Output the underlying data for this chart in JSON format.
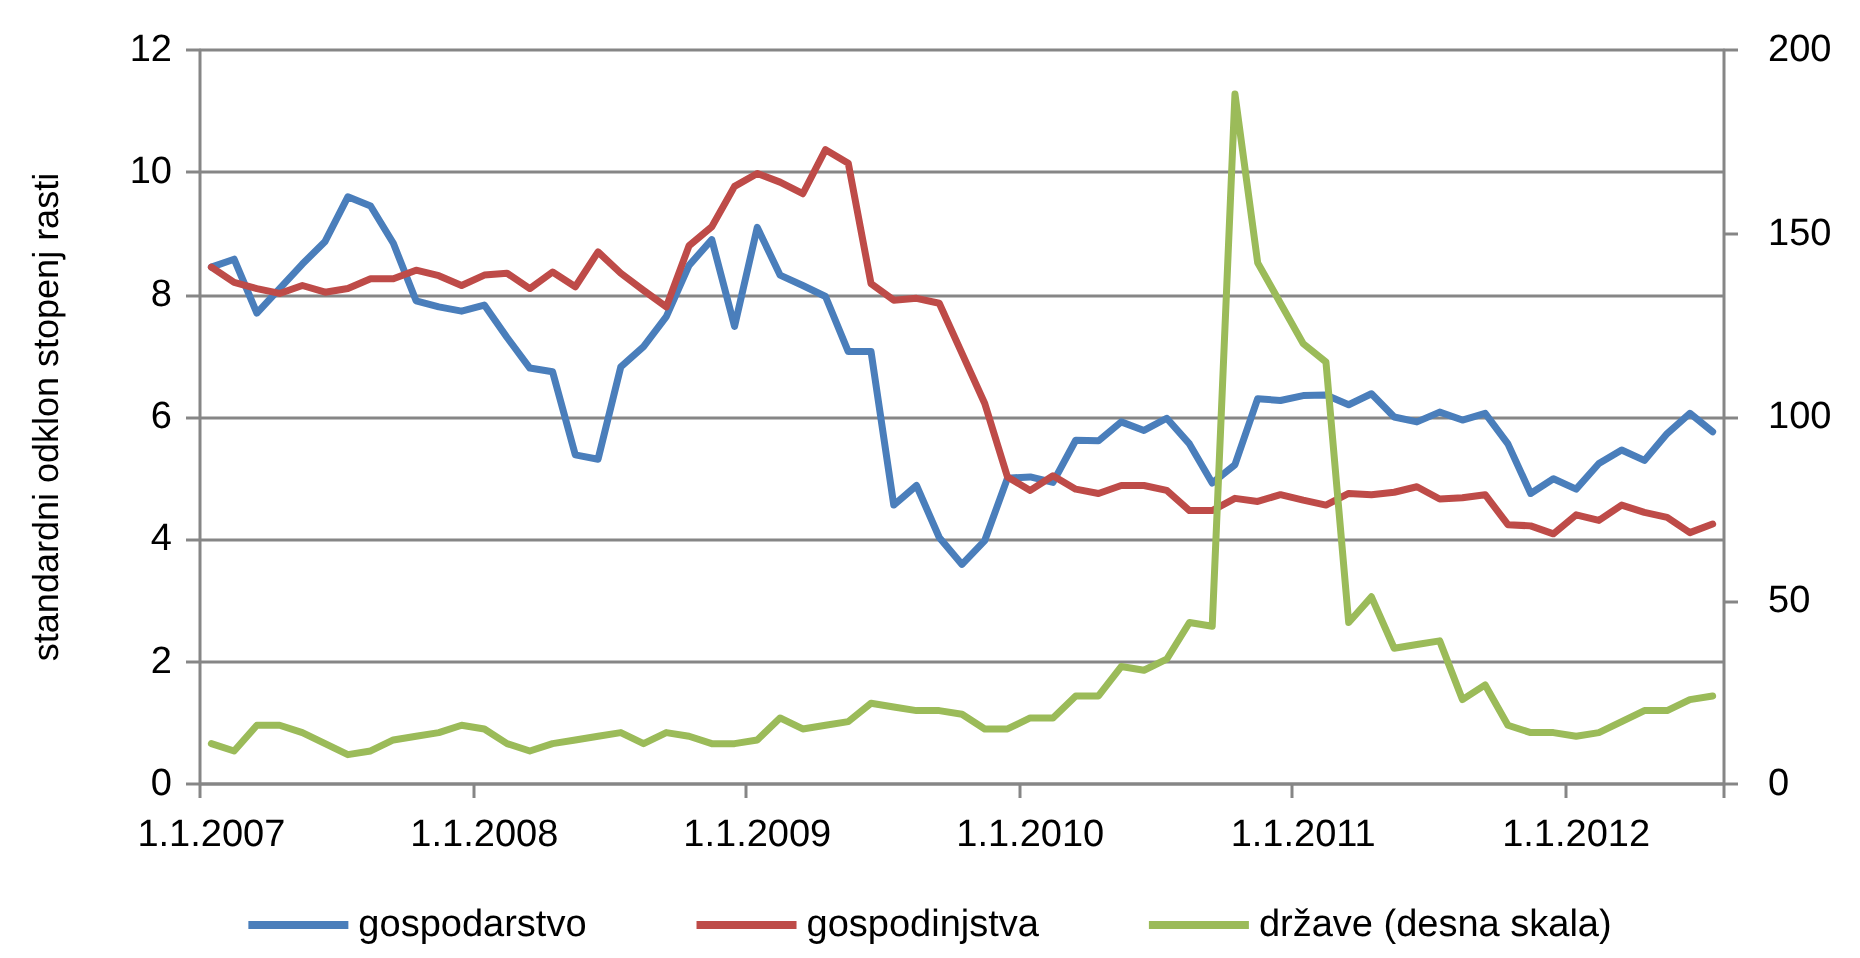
{
  "chart_data": {
    "type": "line",
    "ylabel": "standardni odklon stopenj rasti",
    "categories": [
      "1.1.2007",
      null,
      null,
      null,
      null,
      null,
      null,
      null,
      null,
      null,
      null,
      null,
      "1.1.2008",
      null,
      null,
      null,
      null,
      null,
      null,
      null,
      null,
      null,
      null,
      null,
      "1.1.2009",
      null,
      null,
      null,
      null,
      null,
      null,
      null,
      null,
      null,
      null,
      null,
      "1.1.2010",
      null,
      null,
      null,
      null,
      null,
      null,
      null,
      null,
      null,
      null,
      null,
      "1.1.2011",
      null,
      null,
      null,
      null,
      null,
      null,
      null,
      null,
      null,
      null,
      null,
      "1.1.2012",
      null,
      null,
      null,
      null,
      null,
      null
    ],
    "series": [
      {
        "name": "gospodarstvo",
        "color": "#4a7ebb",
        "values": [
          8.45,
          8.58,
          7.7,
          8.1,
          8.5,
          8.87,
          9.6,
          9.45,
          8.84,
          7.9,
          7.8,
          7.73,
          7.83,
          7.3,
          6.8,
          6.74,
          5.38,
          5.31,
          6.82,
          7.15,
          7.64,
          8.48,
          8.9,
          7.48,
          9.1,
          8.32,
          8.15,
          7.97,
          7.07,
          7.07,
          4.56,
          4.88,
          4.03,
          3.59,
          3.98,
          5.0,
          5.02,
          4.93,
          5.62,
          5.61,
          5.92,
          5.78,
          5.98,
          5.56,
          4.92,
          5.22,
          6.3,
          6.27,
          6.35,
          6.36,
          6.2,
          6.38,
          6.0,
          5.92,
          6.08,
          5.95,
          6.06,
          5.56,
          4.75,
          4.99,
          4.82,
          5.24,
          5.46,
          5.29,
          5.73,
          6.06,
          5.76
        ]
      },
      {
        "name": "gospodinjstva",
        "color": "#be4b48",
        "values": [
          8.45,
          8.2,
          8.1,
          8.02,
          8.15,
          8.04,
          8.1,
          8.26,
          8.26,
          8.4,
          8.31,
          8.15,
          8.32,
          8.35,
          8.1,
          8.37,
          8.13,
          8.7,
          8.35,
          8.07,
          7.8,
          8.8,
          9.11,
          9.77,
          9.98,
          9.84,
          9.65,
          10.37,
          10.15,
          8.18,
          7.91,
          7.94,
          7.86,
          7.04,
          6.22,
          5.02,
          4.8,
          5.04,
          4.82,
          4.75,
          4.88,
          4.88,
          4.8,
          4.47,
          4.47,
          4.67,
          4.62,
          4.73,
          4.64,
          4.56,
          4.75,
          4.73,
          4.77,
          4.86,
          4.66,
          4.68,
          4.73,
          4.24,
          4.22,
          4.09,
          4.4,
          4.31,
          4.56,
          4.44,
          4.36,
          4.11,
          4.25
        ]
      },
      {
        "name": "države (desna skala)",
        "color": "#9bbb59",
        "axis": "y2",
        "values": [
          11,
          9,
          16,
          16,
          14,
          11,
          8,
          9,
          12,
          13,
          14,
          16,
          15,
          11,
          9,
          11,
          12,
          13,
          14,
          11,
          14,
          13,
          11,
          11,
          12,
          18,
          15,
          16,
          17,
          22,
          21,
          20,
          20,
          19,
          15,
          15,
          18,
          18,
          24,
          24,
          32,
          31,
          34,
          44,
          43,
          188,
          142,
          131,
          120,
          115,
          44,
          51,
          37,
          38,
          39,
          23,
          27,
          16,
          14,
          14,
          13,
          14,
          17,
          20,
          20,
          23,
          24
        ]
      }
    ],
    "ylim": [
      0,
      12
    ],
    "yticks": [
      0,
      2,
      4,
      6,
      8,
      10,
      12
    ],
    "y2lim": [
      0,
      200
    ],
    "y2ticks": [
      0,
      50,
      100,
      150,
      200
    ],
    "grid": "y",
    "legend": "bottom",
    "marker": "none",
    "line_style": "solid"
  }
}
